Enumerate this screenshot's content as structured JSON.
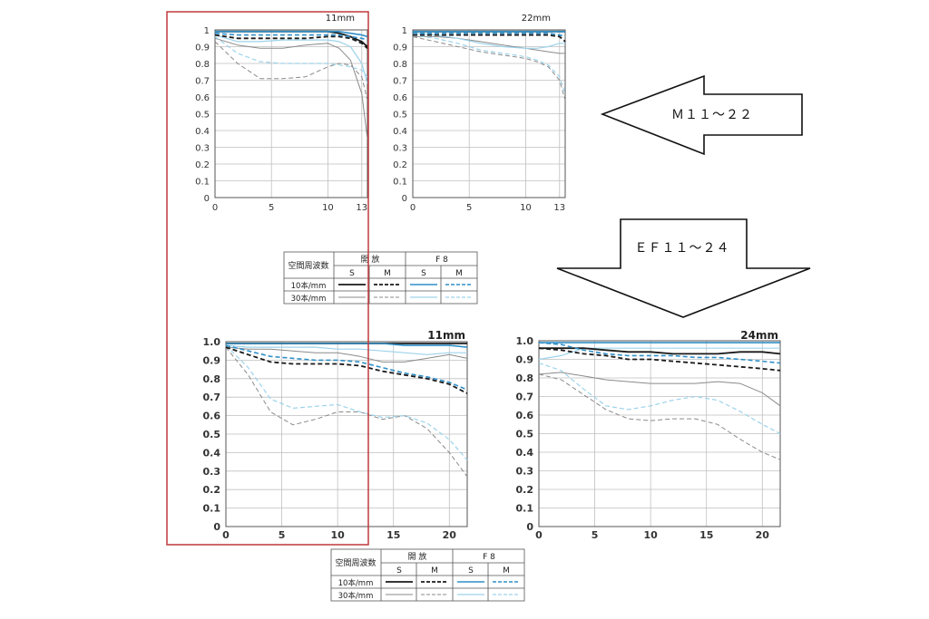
{
  "colors": {
    "black": "#1a1a1a",
    "gray": "#8a8a8a",
    "blue": "#2f8fc7",
    "lightblue": "#9dd3ea",
    "grid": "#bfbfbf",
    "highlight": "#c0393b"
  },
  "arrows": {
    "m_label": "Ｍ１１～２２",
    "ef_label": "ＥＦ１１～２４"
  },
  "legend": {
    "freq_header": "空間周波数",
    "open_header": "開 放",
    "f8_header": "F 8",
    "s": "S",
    "m": "M",
    "row1": "10本/mm",
    "row2": "30本/mm"
  },
  "chart_data": [
    {
      "type": "line",
      "title": "11mm",
      "xlabel": "",
      "ylabel": "",
      "xlim": [
        0,
        13.5
      ],
      "ylim": [
        0,
        1
      ],
      "xticks": [
        "0",
        "5",
        "10",
        "13"
      ],
      "yticks": [
        "0",
        "0.1",
        "0.2",
        "0.3",
        "0.4",
        "0.5",
        "0.6",
        "0.7",
        "0.8",
        "0.9",
        "1"
      ],
      "x": [
        0,
        2,
        4,
        6,
        8,
        10,
        11,
        12,
        13,
        13.5
      ],
      "series": [
        {
          "name": "開放 S 10本/mm",
          "values": [
            0.99,
            0.99,
            0.99,
            0.99,
            0.99,
            0.99,
            0.98,
            0.96,
            0.93,
            0.9
          ]
        },
        {
          "name": "開放 M 10本/mm",
          "values": [
            0.97,
            0.95,
            0.95,
            0.95,
            0.95,
            0.96,
            0.96,
            0.95,
            0.92,
            0.89
          ]
        },
        {
          "name": "F8 S 10本/mm",
          "values": [
            0.99,
            0.99,
            0.99,
            0.99,
            0.99,
            0.99,
            0.99,
            0.98,
            0.97,
            0.96
          ]
        },
        {
          "name": "F8 M 10本/mm",
          "values": [
            0.98,
            0.97,
            0.97,
            0.97,
            0.97,
            0.97,
            0.97,
            0.96,
            0.95,
            0.94
          ]
        },
        {
          "name": "開放 S 30本/mm",
          "values": [
            0.95,
            0.91,
            0.89,
            0.89,
            0.91,
            0.92,
            0.89,
            0.82,
            0.62,
            0.35
          ]
        },
        {
          "name": "開放 M 30本/mm",
          "values": [
            0.93,
            0.8,
            0.71,
            0.71,
            0.72,
            0.78,
            0.8,
            0.79,
            0.72,
            0.58
          ]
        },
        {
          "name": "F8 S 30本/mm",
          "values": [
            0.97,
            0.93,
            0.93,
            0.94,
            0.94,
            0.94,
            0.93,
            0.9,
            0.8,
            0.68
          ]
        },
        {
          "name": "F8 M 30本/mm",
          "values": [
            0.96,
            0.86,
            0.81,
            0.8,
            0.8,
            0.8,
            0.79,
            0.78,
            0.76,
            0.72
          ]
        }
      ]
    },
    {
      "type": "line",
      "title": "22mm",
      "xlabel": "",
      "ylabel": "",
      "xlim": [
        0,
        13.5
      ],
      "ylim": [
        0,
        1
      ],
      "xticks": [
        "0",
        "5",
        "10",
        "13"
      ],
      "yticks": [
        "0",
        "0.1",
        "0.2",
        "0.3",
        "0.4",
        "0.5",
        "0.6",
        "0.7",
        "0.8",
        "0.9",
        "1"
      ],
      "x": [
        0,
        2,
        4,
        6,
        8,
        10,
        11,
        12,
        13,
        13.5
      ],
      "series": [
        {
          "name": "開放 S 10本/mm",
          "values": [
            0.99,
            0.99,
            0.99,
            0.99,
            0.99,
            0.99,
            0.99,
            0.99,
            0.99,
            0.99
          ]
        },
        {
          "name": "開放 M 10本/mm",
          "values": [
            0.97,
            0.97,
            0.97,
            0.97,
            0.97,
            0.97,
            0.97,
            0.97,
            0.96,
            0.93
          ]
        },
        {
          "name": "F8 S 10本/mm",
          "values": [
            0.99,
            0.99,
            0.99,
            0.99,
            0.99,
            0.99,
            0.99,
            0.99,
            0.99,
            0.99
          ]
        },
        {
          "name": "F8 M 10本/mm",
          "values": [
            0.98,
            0.98,
            0.98,
            0.98,
            0.98,
            0.98,
            0.98,
            0.98,
            0.97,
            0.96
          ]
        },
        {
          "name": "開放 S 30本/mm",
          "values": [
            0.96,
            0.96,
            0.95,
            0.93,
            0.91,
            0.89,
            0.88,
            0.87,
            0.86,
            0.86
          ]
        },
        {
          "name": "開放 M 30本/mm",
          "values": [
            0.96,
            0.93,
            0.9,
            0.87,
            0.85,
            0.83,
            0.81,
            0.78,
            0.7,
            0.58
          ]
        },
        {
          "name": "F8 S 30本/mm",
          "values": [
            0.98,
            0.97,
            0.95,
            0.92,
            0.9,
            0.89,
            0.89,
            0.9,
            0.92,
            0.92
          ]
        },
        {
          "name": "F8 M 30本/mm",
          "values": [
            0.97,
            0.95,
            0.92,
            0.88,
            0.86,
            0.84,
            0.82,
            0.79,
            0.72,
            0.62
          ]
        }
      ]
    },
    {
      "type": "line",
      "title": "11mm",
      "xlabel": "",
      "ylabel": "",
      "xlim": [
        0,
        21.6
      ],
      "ylim": [
        0,
        1
      ],
      "xticks": [
        "0",
        "5",
        "10",
        "15",
        "20"
      ],
      "yticks": [
        "0",
        "0.1",
        "0.2",
        "0.3",
        "0.4",
        "0.5",
        "0.6",
        "0.7",
        "0.8",
        "0.9",
        "1.0"
      ],
      "x": [
        0,
        2,
        4,
        6,
        8,
        10,
        12,
        14,
        16,
        18,
        20,
        21.6
      ],
      "series": [
        {
          "name": "開放 S 10本/mm",
          "values": [
            0.99,
            0.99,
            0.99,
            0.99,
            0.99,
            0.99,
            0.99,
            0.99,
            0.99,
            0.99,
            0.99,
            0.99
          ]
        },
        {
          "name": "開放 M 10本/mm",
          "values": [
            0.97,
            0.93,
            0.89,
            0.88,
            0.88,
            0.88,
            0.87,
            0.84,
            0.82,
            0.8,
            0.77,
            0.72
          ]
        },
        {
          "name": "F8 S 10本/mm",
          "values": [
            0.99,
            0.99,
            0.99,
            0.99,
            0.99,
            0.99,
            0.99,
            0.99,
            0.98,
            0.98,
            0.98,
            0.97
          ]
        },
        {
          "name": "F8 M 10本/mm",
          "values": [
            0.98,
            0.95,
            0.92,
            0.91,
            0.9,
            0.9,
            0.89,
            0.86,
            0.83,
            0.81,
            0.78,
            0.74
          ]
        },
        {
          "name": "開放 S 30本/mm",
          "values": [
            0.97,
            0.96,
            0.96,
            0.95,
            0.94,
            0.94,
            0.92,
            0.89,
            0.89,
            0.91,
            0.93,
            0.91
          ]
        },
        {
          "name": "開放 M 30本/mm",
          "values": [
            0.97,
            0.82,
            0.62,
            0.55,
            0.58,
            0.62,
            0.62,
            0.58,
            0.6,
            0.53,
            0.4,
            0.27
          ]
        },
        {
          "name": "F8 S 30本/mm",
          "values": [
            0.98,
            0.97,
            0.97,
            0.97,
            0.97,
            0.96,
            0.96,
            0.95,
            0.94,
            0.93,
            0.94,
            0.94
          ]
        },
        {
          "name": "F8 M 30本/mm",
          "values": [
            0.98,
            0.86,
            0.69,
            0.64,
            0.65,
            0.66,
            0.62,
            0.59,
            0.6,
            0.56,
            0.47,
            0.36
          ]
        }
      ]
    },
    {
      "type": "line",
      "title": "24mm",
      "xlabel": "",
      "ylabel": "",
      "xlim": [
        0,
        21.6
      ],
      "ylim": [
        0,
        1
      ],
      "xticks": [
        "0",
        "5",
        "10",
        "15",
        "20"
      ],
      "yticks": [
        "0",
        "0.1",
        "0.2",
        "0.3",
        "0.4",
        "0.5",
        "0.6",
        "0.7",
        "0.8",
        "0.9",
        "1.0"
      ],
      "x": [
        0,
        2,
        4,
        6,
        8,
        10,
        12,
        14,
        16,
        18,
        20,
        21.6
      ],
      "series": [
        {
          "name": "開放 S 10本/mm",
          "values": [
            0.96,
            0.96,
            0.96,
            0.95,
            0.94,
            0.94,
            0.93,
            0.93,
            0.93,
            0.94,
            0.94,
            0.93
          ]
        },
        {
          "name": "開放 M 10本/mm",
          "values": [
            0.96,
            0.95,
            0.93,
            0.92,
            0.9,
            0.9,
            0.89,
            0.88,
            0.87,
            0.86,
            0.85,
            0.84
          ]
        },
        {
          "name": "F8 S 10本/mm",
          "values": [
            0.99,
            0.99,
            0.99,
            0.99,
            0.99,
            0.99,
            0.99,
            0.99,
            0.99,
            0.99,
            0.99,
            0.99
          ]
        },
        {
          "name": "F8 M 10本/mm",
          "values": [
            0.99,
            0.98,
            0.95,
            0.93,
            0.92,
            0.92,
            0.92,
            0.91,
            0.91,
            0.9,
            0.89,
            0.88
          ]
        },
        {
          "name": "開放 S 30本/mm",
          "values": [
            0.82,
            0.83,
            0.81,
            0.79,
            0.78,
            0.77,
            0.77,
            0.77,
            0.78,
            0.77,
            0.72,
            0.65
          ]
        },
        {
          "name": "開放 M 30本/mm",
          "values": [
            0.82,
            0.79,
            0.71,
            0.63,
            0.58,
            0.57,
            0.58,
            0.58,
            0.55,
            0.47,
            0.4,
            0.36
          ]
        },
        {
          "name": "F8 S 30本/mm",
          "values": [
            0.9,
            0.92,
            0.96,
            0.96,
            0.96,
            0.96,
            0.96,
            0.96,
            0.96,
            0.96,
            0.96,
            0.96
          ]
        },
        {
          "name": "F8 M 30本/mm",
          "values": [
            0.88,
            0.84,
            0.74,
            0.65,
            0.63,
            0.65,
            0.68,
            0.7,
            0.68,
            0.62,
            0.55,
            0.5
          ]
        }
      ]
    }
  ]
}
